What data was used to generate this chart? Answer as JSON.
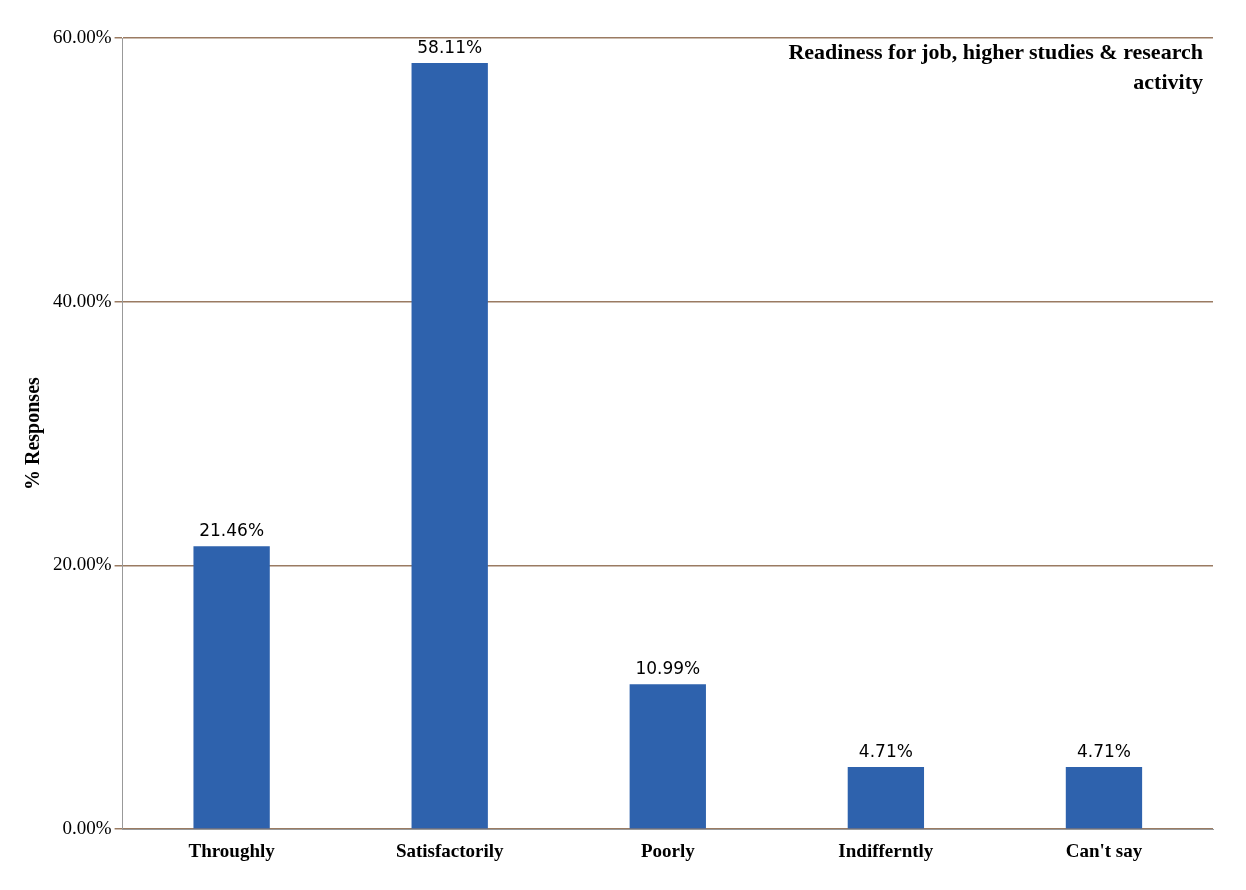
{
  "chart_data": {
    "type": "bar",
    "title": "Readiness for job, higher studies & research activity",
    "ylabel": "% Responses",
    "categories": [
      "Throughly",
      "Satisfactorily",
      "Poorly",
      "Indifferntly",
      "Can't say"
    ],
    "values": [
      21.46,
      58.11,
      10.99,
      4.71,
      4.71
    ],
    "value_labels": [
      "21.46%",
      "58.11%",
      "10.99%",
      "4.71%",
      "4.71%"
    ],
    "color": "#2e62ad",
    "ylim": [
      0,
      60
    ],
    "yticks": [
      {
        "value": 0,
        "label": "0.00%"
      },
      {
        "value": 20,
        "label": "20.00%"
      },
      {
        "value": 40,
        "label": "40.00%"
      },
      {
        "value": 60,
        "label": "60.00%"
      }
    ],
    "grid": "y",
    "legend": false
  }
}
